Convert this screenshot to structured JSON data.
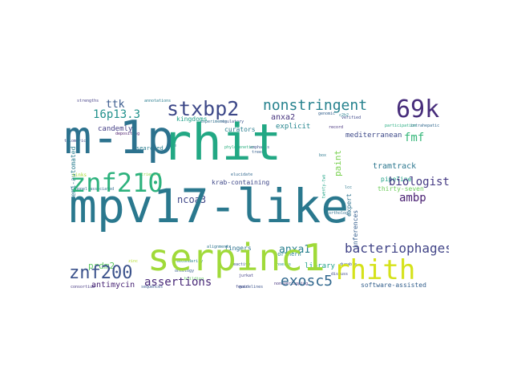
{
  "cloud": {
    "words": {
      "mpv17": "mpv17-like",
      "m1p": "m-1p",
      "rhit": "rhit",
      "serpinc1": "serpinc1",
      "znf210": "znf210",
      "rhith": "rhith",
      "k69": "69k",
      "stxbp2": "stxbp2",
      "nonstringent": "nonstringent",
      "bacteriophages": "bacteriophages",
      "exosc5": "exosc5",
      "znf200": "znf200",
      "assertions": "assertions",
      "biologist": "biologist",
      "ambp": "ambp",
      "fmf": "fmf",
      "p16p13": "16p13.3",
      "ttk": "ttk",
      "ncoa3": "ncoa3",
      "anxa1": "anxa1",
      "prdm2": "prdm2",
      "antimycin": "antimycin",
      "paint": "paint",
      "tramtrack": "tramtrack",
      "candemly": "candemly",
      "kingdoms": "kingdoms",
      "curators": "curators",
      "anxa2": "anxa2",
      "explicit": "explicit",
      "mediterranean": "mediterranean",
      "pipeline": "pipeline",
      "thirtyseven": "thirty-seven",
      "krab": "krab-containing",
      "fingers": "fingers",
      "semi": "semi-automated",
      "library": "library",
      "software": "software-assisted",
      "searched": "searched",
      "northern": "northern",
      "expert": "expert",
      "inferences": "inferences",
      "sinks": "sinks"
    },
    "small_words": [
      "strengths",
      "annotations",
      "verified",
      "trees",
      "elucidate",
      "alignments",
      "reactive",
      "fever",
      "durable",
      "discuss",
      "depositing",
      "life",
      "retrieving",
      "secondarily",
      "inserts",
      "ontology",
      "twenty-two",
      "jurkat",
      "nonoverlapping",
      "orthology",
      "guidelines",
      "truppel-associated",
      "consortium",
      "sequences",
      "box",
      "lcc",
      "building",
      "zinc",
      "telomeric",
      "participation",
      "intrahepatic",
      "record",
      "genomic",
      "c2h2",
      "regulatory",
      "experiments",
      "emphasis",
      "phylogenetic"
    ]
  }
}
